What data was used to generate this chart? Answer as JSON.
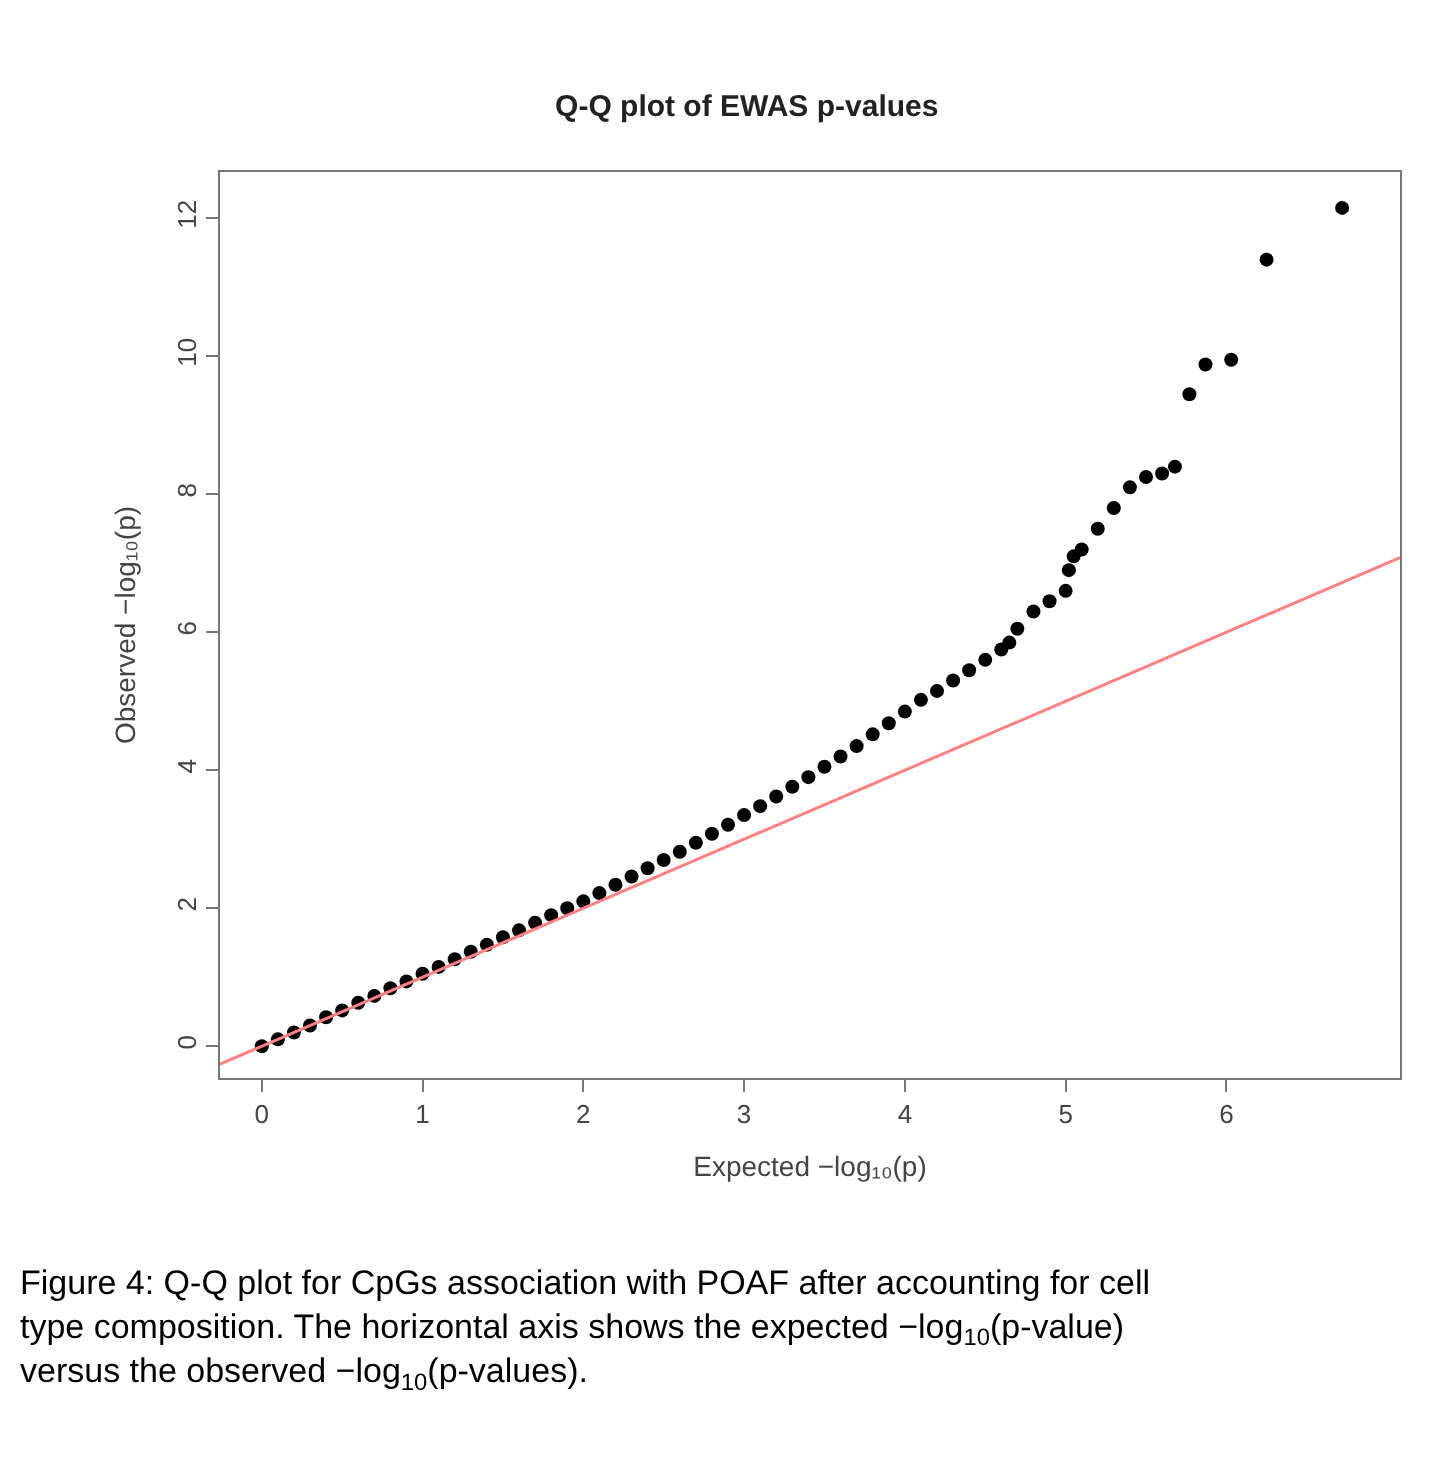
{
  "chart_data": {
    "type": "scatter",
    "title": "Q-Q plot of EWAS p-values",
    "xlabel": "Expected −log₁₀(p)",
    "ylabel": "Observed −log₁₀(p)",
    "annotations": [
      "Figure 4: Q-Q plot for CpGs association with POAF after accounting for cell type composition. The horizontal axis shows the expected −log$_{10}$(p-value) versus the observed −log$_{10}$(p-values)."
    ],
    "xlim": [
      -0.26,
      7.08
    ],
    "ylim": [
      -0.46,
      12.67
    ],
    "xticks": [
      0,
      1,
      2,
      3,
      4,
      5,
      6
    ],
    "yticks": [
      0,
      2,
      4,
      6,
      8,
      10,
      12
    ],
    "grid": false,
    "series": [
      {
        "marker": "circle",
        "color": "#000000",
        "x": [
          0,
          0.1,
          0.2,
          0.3,
          0.4,
          0.5,
          0.6,
          0.7,
          0.8,
          0.9,
          1.0,
          1.1,
          1.2,
          1.3,
          1.4,
          1.5,
          1.6,
          1.7,
          1.8,
          1.9,
          2.0,
          2.1,
          2.2,
          2.3,
          2.4,
          2.5,
          2.6,
          2.7,
          2.8,
          2.9,
          3.0,
          3.1,
          3.2,
          3.3,
          3.4,
          3.5,
          3.6,
          3.7,
          3.8,
          3.9,
          4.0,
          4.1,
          4.2,
          4.3,
          4.4,
          4.5,
          4.6,
          4.65,
          4.7,
          4.8,
          4.9,
          5.0,
          5.02,
          5.05,
          5.1,
          5.2,
          5.3,
          5.4,
          5.5,
          5.6,
          5.68,
          5.77,
          5.87,
          6.03,
          6.25,
          6.72
        ],
        "values": [
          0,
          0.1,
          0.2,
          0.3,
          0.42,
          0.52,
          0.63,
          0.73,
          0.84,
          0.94,
          1.05,
          1.15,
          1.26,
          1.37,
          1.47,
          1.58,
          1.68,
          1.79,
          1.9,
          2.0,
          2.1,
          2.22,
          2.34,
          2.46,
          2.58,
          2.7,
          2.82,
          2.95,
          3.08,
          3.21,
          3.35,
          3.48,
          3.62,
          3.76,
          3.9,
          4.05,
          4.2,
          4.35,
          4.52,
          4.68,
          4.85,
          5.02,
          5.15,
          5.3,
          5.45,
          5.6,
          5.75,
          5.85,
          6.05,
          6.3,
          6.45,
          6.6,
          6.9,
          7.1,
          7.2,
          7.5,
          7.8,
          8.1,
          8.25,
          8.3,
          8.4,
          9.45,
          9.88,
          9.95,
          11.4,
          12.15
        ]
      },
      {
        "type": "line",
        "color": "#ff8080",
        "line_style": "solid",
        "x": [
          -0.26,
          7.08
        ],
        "values": [
          -0.26,
          7.08
        ]
      }
    ]
  }
}
